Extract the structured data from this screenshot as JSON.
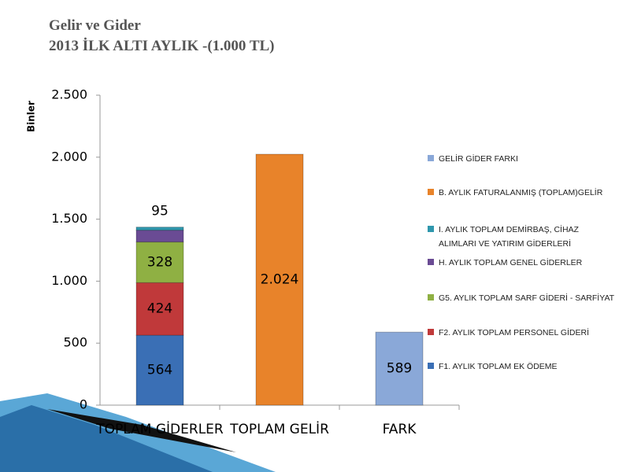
{
  "chart_data": {
    "type": "stacked_bar",
    "title": "Gelir ve Gider",
    "subtitle": "2013 İLK ALTI AYLIK -(1.000 TL)",
    "y_label": "Binler",
    "categories": [
      "TOPLAM GİDERLER",
      "TOPLAM GELİR",
      "FARK"
    ],
    "series": [
      {
        "name": "F1. AYLIK TOPLAM EK ÖDEME",
        "color": "#3a6fb5",
        "values": [
          564,
          null,
          null
        ],
        "value_labels": [
          "564",
          null,
          null
        ]
      },
      {
        "name": "F2. AYLIK TOPLAM PERSONEL GİDERİ",
        "color": "#c0393a",
        "values": [
          424,
          null,
          null
        ],
        "value_labels": [
          "424",
          null,
          null
        ]
      },
      {
        "name": "G5. AYLIK TOPLAM SARF GİDERİ  - SARFİYAT",
        "color": "#8fb043",
        "values": [
          328,
          null,
          null
        ],
        "value_labels": [
          "328",
          null,
          null
        ]
      },
      {
        "name": "H. AYLIK TOPLAM GENEL GİDERLER",
        "color": "#6a4b94",
        "values": [
          95,
          null,
          null
        ],
        "value_labels": [
          "95",
          null,
          null
        ]
      },
      {
        "name": "I. AYLIK TOPLAM DEMİRBAŞ, CİHAZ ALIMLARI VE YATIRIM GİDERLERİ",
        "color": "#2f97ad",
        "values": [
          25,
          null,
          null
        ]
      },
      {
        "name": "B. AYLIK FATURALANMIŞ (TOPLAM)GELİR",
        "color": "#e8832a",
        "values": [
          null,
          2024,
          null
        ],
        "value_labels": [
          null,
          "2.024",
          null
        ]
      },
      {
        "name": "GELİR GİDER FARKI",
        "color": "#8aa8d8",
        "values": [
          null,
          null,
          589
        ],
        "value_labels": [
          null,
          null,
          "589"
        ]
      }
    ],
    "ylim": [
      0,
      2500
    ],
    "yticks": [
      0,
      500,
      {
        "value": 1000,
        "label": "1.000"
      },
      {
        "value": 1500,
        "label": "1.500"
      },
      {
        "value": 2000,
        "label": "2.000"
      },
      {
        "value": 2500,
        "label": "2.500"
      }
    ]
  }
}
